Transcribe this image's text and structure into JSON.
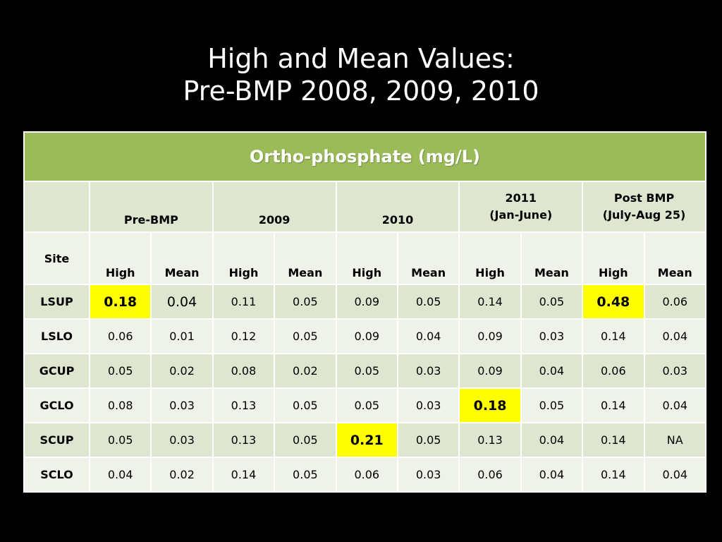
{
  "title": {
    "line1": "High and Mean Values:",
    "line2": "Pre-BMP 2008, 2009, 2010"
  },
  "table": {
    "header": "Ortho-phosphate  (mg/L)",
    "groups": [
      {
        "line1": "",
        "line2": "Pre-BMP"
      },
      {
        "line1": "",
        "line2": "2009"
      },
      {
        "line1": "",
        "line2": "2010"
      },
      {
        "line1": "2011",
        "line2": "(Jan-June)"
      },
      {
        "line1": "Post BMP",
        "line2": "(July-Aug 25)"
      }
    ],
    "site_label": "Site",
    "sub_high": "High",
    "sub_mean": "Mean",
    "rows": [
      {
        "site": "LSUP",
        "values": [
          "0.18",
          "0.04",
          "0.11",
          "0.05",
          "0.09",
          "0.05",
          "0.14",
          "0.05",
          "0.48",
          "0.06"
        ]
      },
      {
        "site": "LSLO",
        "values": [
          "0.06",
          "0.01",
          "0.12",
          "0.05",
          "0.09",
          "0.04",
          "0.09",
          "0.03",
          "0.14",
          "0.04"
        ]
      },
      {
        "site": "GCUP",
        "values": [
          "0.05",
          "0.02",
          "0.08",
          "0.02",
          "0.05",
          "0.03",
          "0.09",
          "0.04",
          "0.06",
          "0.03"
        ]
      },
      {
        "site": "GCLO",
        "values": [
          "0.08",
          "0.03",
          "0.13",
          "0.05",
          "0.05",
          "0.03",
          "0.18",
          "0.05",
          "0.14",
          "0.04"
        ]
      },
      {
        "site": "SCUP",
        "values": [
          "0.05",
          "0.03",
          "0.13",
          "0.05",
          "0.21",
          "0.05",
          "0.13",
          "0.04",
          "0.14",
          "NA"
        ]
      },
      {
        "site": "SCLO",
        "values": [
          "0.04",
          "0.02",
          "0.14",
          "0.05",
          "0.06",
          "0.03",
          "0.06",
          "0.04",
          "0.14",
          "0.04"
        ]
      }
    ],
    "highlight_color": "#ffff00",
    "header_color": "#9bbb59"
  }
}
